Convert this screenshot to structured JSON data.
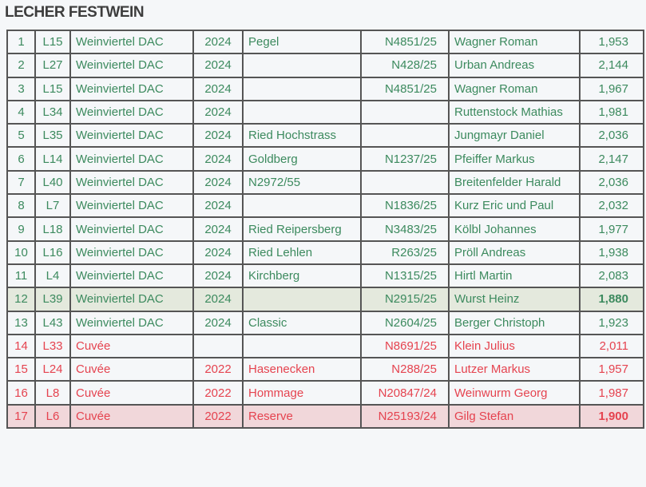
{
  "title": "LECHER FESTWEIN",
  "colors": {
    "green": "#3c8a5e",
    "red": "#e5434f",
    "highlight_green": "#e4e9dd",
    "highlight_red": "#f1d7da"
  },
  "rows": [
    {
      "nr": "1",
      "code": "L15",
      "type": "Weinviertel DAC",
      "year": "2024",
      "site": "Pegel",
      "number": "N4851/25",
      "producer": "Wagner Roman",
      "score": "1,953",
      "color": "green"
    },
    {
      "nr": "2",
      "code": "L27",
      "type": "Weinviertel DAC",
      "year": "2024",
      "site": "",
      "number": "N428/25",
      "producer": "Urban Andreas",
      "score": "2,144",
      "color": "green"
    },
    {
      "nr": "3",
      "code": "L15",
      "type": "Weinviertel DAC",
      "year": "2024",
      "site": "",
      "number": "N4851/25",
      "producer": "Wagner Roman",
      "score": "1,967",
      "color": "green"
    },
    {
      "nr": "4",
      "code": "L34",
      "type": "Weinviertel DAC",
      "year": "2024",
      "site": "",
      "number": "",
      "producer": "Ruttenstock Mathias",
      "score": "1,981",
      "color": "green"
    },
    {
      "nr": "5",
      "code": "L35",
      "type": "Weinviertel DAC",
      "year": "2024",
      "site": "Ried Hochstrass",
      "number": "",
      "producer": "Jungmayr Daniel",
      "score": "2,036",
      "color": "green"
    },
    {
      "nr": "6",
      "code": "L14",
      "type": "Weinviertel DAC",
      "year": "2024",
      "site": "Goldberg",
      "number": "N1237/25",
      "producer": "Pfeiffer Markus",
      "score": "2,147",
      "color": "green"
    },
    {
      "nr": "7",
      "code": "L40",
      "type": "Weinviertel DAC",
      "year": "2024",
      "site": "N2972/55",
      "number": "",
      "producer": "Breitenfelder Harald",
      "score": "2,036",
      "color": "green"
    },
    {
      "nr": "8",
      "code": "L7",
      "type": "Weinviertel DAC",
      "year": "2024",
      "site": "",
      "number": "N1836/25",
      "producer": "Kurz Eric und Paul",
      "score": "2,032",
      "color": "green"
    },
    {
      "nr": "9",
      "code": "L18",
      "type": "Weinviertel DAC",
      "year": "2024",
      "site": "Ried Reipersberg",
      "number": "N3483/25",
      "producer": "Kölbl Johannes",
      "score": "1,977",
      "color": "green"
    },
    {
      "nr": "10",
      "code": "L16",
      "type": "Weinviertel DAC",
      "year": "2024",
      "site": "Ried Lehlen",
      "number": "R263/25",
      "producer": "Pröll Andreas",
      "score": "1,938",
      "color": "green"
    },
    {
      "nr": "11",
      "code": "L4",
      "type": "Weinviertel DAC",
      "year": "2024",
      "site": "Kirchberg",
      "number": "N1315/25",
      "producer": "Hirtl Martin",
      "score": "2,083",
      "color": "green"
    },
    {
      "nr": "12",
      "code": "L39",
      "type": "Weinviertel DAC",
      "year": "2024",
      "site": "",
      "number": "N2915/25",
      "producer": "Wurst Heinz",
      "score": "1,880",
      "color": "green",
      "highlight": true
    },
    {
      "nr": "13",
      "code": "L43",
      "type": "Weinviertel DAC",
      "year": "2024",
      "site": "Classic",
      "number": "N2604/25",
      "producer": "Berger Christoph",
      "score": "1,923",
      "color": "green"
    },
    {
      "nr": "14",
      "code": "L33",
      "type": "Cuvée",
      "year": "",
      "site": "",
      "number": "N8691/25",
      "producer": "Klein Julius",
      "score": "2,011",
      "color": "red"
    },
    {
      "nr": "15",
      "code": "L24",
      "type": "Cuvée",
      "year": "2022",
      "site": "Hasenecken",
      "number": "N288/25",
      "producer": "Lutzer Markus",
      "score": "1,957",
      "color": "red"
    },
    {
      "nr": "16",
      "code": "L8",
      "type": "Cuvée",
      "year": "2022",
      "site": "Hommage",
      "number": "N20847/24",
      "producer": "Weinwurm Georg",
      "score": "1,987",
      "color": "red"
    },
    {
      "nr": "17",
      "code": "L6",
      "type": "Cuvée",
      "year": "2022",
      "site": "Reserve",
      "number": "N25193/24",
      "producer": "Gilg Stefan",
      "score": "1,900",
      "color": "red",
      "highlight": true
    }
  ]
}
